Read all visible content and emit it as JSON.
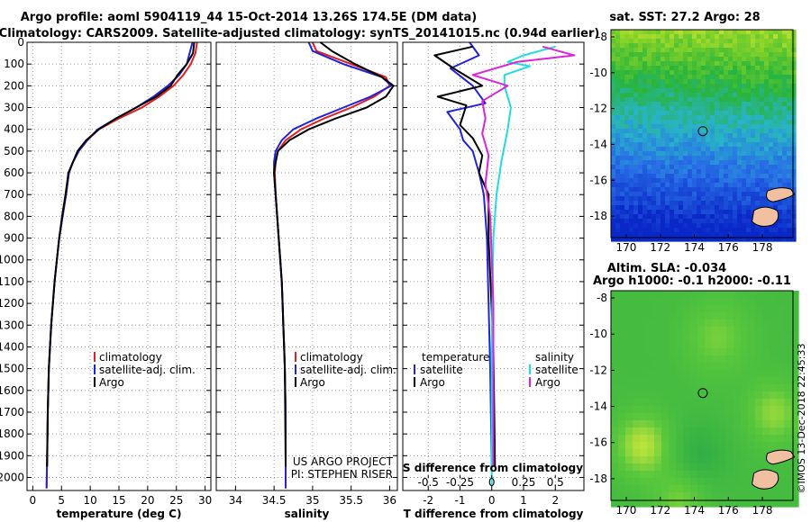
{
  "header": {
    "title1": "Argo profile: aoml 5904119_44 15-Oct-2014 13.26S 174.5E (DM data)",
    "title2": "Climatology: CARS2009. Satellite-adjusted climatology: synTS_20141015.nc (0.94d earlier)"
  },
  "colors": {
    "climatology": "#e41e1e",
    "satellite": "#2222dd",
    "argo": "#000000",
    "argo_salinity": "#dd22dd",
    "satellite_salinity": "#22dddd",
    "land": "#f0c0a0"
  },
  "chart_data": [
    {
      "id": "temperature",
      "type": "line",
      "xlabel": "temperature (deg C)",
      "ylabel": "",
      "xlim": [
        -1,
        31
      ],
      "ylim": [
        2060,
        0
      ],
      "xticks": [
        0,
        5,
        10,
        15,
        20,
        25,
        30
      ],
      "yticks": [
        0,
        100,
        200,
        300,
        400,
        500,
        600,
        700,
        800,
        900,
        1000,
        1100,
        1200,
        1300,
        1400,
        1500,
        1600,
        1700,
        1800,
        1900,
        2000
      ],
      "grid": true,
      "legend": {
        "placement": "lower-center",
        "entries": [
          "climatology",
          "satellite-adj. clim.",
          "Argo"
        ]
      },
      "series": [
        {
          "name": "climatology",
          "x": [
            28.6,
            28.3,
            27.5,
            26.2,
            24.5,
            22.0,
            19.0,
            15.0,
            11.5,
            9.5,
            8.0,
            7.0,
            6.3,
            5.8,
            5.2,
            4.6,
            4.2,
            3.8,
            3.5,
            3.2,
            3.0,
            2.8,
            2.6,
            2.5,
            2.4
          ],
          "y": [
            0,
            50,
            100,
            150,
            200,
            250,
            300,
            350,
            400,
            450,
            500,
            550,
            600,
            700,
            800,
            900,
            1000,
            1100,
            1200,
            1300,
            1400,
            1500,
            1700,
            1900,
            2050
          ]
        },
        {
          "name": "satellite-adj. clim.",
          "x": [
            27.8,
            27.3,
            26.8,
            25.5,
            23.5,
            21.0,
            18.0,
            14.5,
            11.3,
            9.5,
            8.0,
            7.0,
            6.3,
            5.8,
            5.2,
            4.6,
            4.2,
            3.8,
            3.5,
            3.2,
            3.0,
            2.8,
            2.6,
            2.5,
            2.4
          ],
          "y": [
            0,
            50,
            100,
            150,
            200,
            250,
            300,
            350,
            400,
            450,
            500,
            550,
            600,
            700,
            800,
            900,
            1000,
            1100,
            1200,
            1300,
            1400,
            1500,
            1700,
            1900,
            2050
          ]
        },
        {
          "name": "Argo",
          "x": [
            28.1,
            27.9,
            26.8,
            25.2,
            24.0,
            21.5,
            18.0,
            14.5,
            11.5,
            9.3,
            7.8,
            7.0,
            6.2,
            5.7,
            5.1,
            4.6,
            4.2,
            3.8,
            3.5,
            3.2,
            3.0,
            2.8,
            2.6,
            2.5
          ],
          "y": [
            0,
            50,
            100,
            150,
            200,
            250,
            300,
            350,
            400,
            450,
            500,
            550,
            600,
            700,
            800,
            900,
            1000,
            1100,
            1200,
            1300,
            1400,
            1500,
            1700,
            1950
          ]
        }
      ]
    },
    {
      "id": "salinity",
      "type": "line",
      "xlabel": "salinity",
      "ylabel": "",
      "xlim": [
        33.75,
        36.1
      ],
      "ylim": [
        2060,
        0
      ],
      "xticks": [
        34,
        34.5,
        35,
        35.5,
        36
      ],
      "xticklabels": [
        "34",
        "34.5",
        "35",
        "35.5",
        "36"
      ],
      "grid": true,
      "legend": {
        "placement": "lower-center",
        "entries": [
          "climatology",
          "satellite-adj. clim.",
          "Argo"
        ]
      },
      "annotations": [
        "US ARGO PROJECT",
        "PI: STEPHEN RISER"
      ],
      "series": [
        {
          "name": "climatology",
          "x": [
            35.0,
            35.05,
            35.5,
            35.95,
            36.0,
            35.8,
            35.5,
            35.15,
            34.85,
            34.65,
            34.55,
            34.52,
            34.51,
            34.52,
            34.54,
            34.56,
            34.58,
            34.6,
            34.61,
            34.62,
            34.63,
            34.64,
            34.65,
            34.65
          ],
          "y": [
            0,
            40,
            100,
            160,
            200,
            250,
            300,
            350,
            400,
            450,
            500,
            550,
            600,
            700,
            800,
            900,
            1000,
            1100,
            1200,
            1300,
            1400,
            1500,
            1700,
            2050
          ]
        },
        {
          "name": "satellite-adj. clim.",
          "x": [
            34.95,
            35.0,
            35.4,
            35.9,
            36.02,
            35.75,
            35.4,
            35.05,
            34.75,
            34.6,
            34.52,
            34.5,
            34.5,
            34.52,
            34.54,
            34.56,
            34.58,
            34.6,
            34.61,
            34.62,
            34.63,
            34.64,
            34.65,
            34.65
          ],
          "y": [
            0,
            40,
            100,
            160,
            200,
            250,
            300,
            350,
            400,
            450,
            500,
            550,
            600,
            700,
            800,
            900,
            1000,
            1100,
            1200,
            1300,
            1400,
            1500,
            1700,
            2050
          ]
        },
        {
          "name": "Argo",
          "x": [
            35.1,
            35.25,
            35.55,
            35.9,
            36.05,
            35.95,
            35.7,
            35.3,
            34.95,
            34.7,
            34.55,
            34.52,
            34.5,
            34.52,
            34.54,
            34.56,
            34.58,
            34.6,
            34.61,
            34.62,
            34.63,
            34.64,
            34.65
          ],
          "y": [
            0,
            40,
            100,
            160,
            200,
            250,
            300,
            350,
            400,
            450,
            500,
            550,
            600,
            700,
            800,
            900,
            1000,
            1100,
            1200,
            1300,
            1400,
            1500,
            1950
          ]
        }
      ]
    },
    {
      "id": "difference",
      "type": "line",
      "xlabel": "T difference from climatology",
      "secondary_xlabel": "S difference from climatology",
      "ylabel": "",
      "xlim": [
        -2.8,
        2.9
      ],
      "ylim": [
        2060,
        0
      ],
      "xticks": [
        -2,
        -1,
        0,
        1,
        2
      ],
      "secondary_xticks": [
        -2,
        -1,
        0,
        1,
        2
      ],
      "secondary_xticklabels": [
        "-0.5",
        "-0.25",
        "0",
        "0.25",
        "0.5"
      ],
      "grid": true,
      "legend": {
        "placement": "lower-center",
        "groups": [
          "temperature",
          "salinity"
        ],
        "entries": [
          "satellite",
          "Argo",
          "satellite",
          "Argo"
        ]
      },
      "series": [
        {
          "name": "temperature satellite",
          "x": [
            -0.7,
            -0.4,
            -1.3,
            -0.6,
            -0.2,
            -1.4,
            -1.0,
            -0.9,
            -0.6,
            -0.4,
            -0.25,
            -0.15,
            -0.1,
            -0.05,
            0.0
          ],
          "y": [
            0,
            60,
            120,
            200,
            280,
            320,
            400,
            450,
            500,
            600,
            700,
            900,
            1200,
            1500,
            1950
          ]
        },
        {
          "name": "temperature Argo",
          "x": [
            -0.6,
            -1.8,
            -1.2,
            -0.3,
            -1.7,
            -0.8,
            -1.0,
            -0.6,
            -0.3,
            -0.4,
            -0.1,
            -0.1,
            0.05,
            0.1
          ],
          "y": [
            20,
            60,
            120,
            200,
            250,
            290,
            380,
            440,
            520,
            600,
            700,
            900,
            1400,
            1950
          ]
        },
        {
          "name": "salinity satellite",
          "x": [
            2.0,
            1.0,
            0.5,
            1.2,
            0.4,
            0.4,
            0.6,
            0.5,
            0.3,
            0.15,
            0.05,
            0.0,
            0.0
          ],
          "y": [
            20,
            60,
            90,
            110,
            150,
            200,
            300,
            400,
            550,
            700,
            900,
            1400,
            2040
          ]
        },
        {
          "name": "salinity Argo",
          "x": [
            1.6,
            2.6,
            0.8,
            -0.6,
            0.5,
            -0.3,
            -0.2,
            -0.3,
            -0.1,
            -0.2,
            -0.05,
            0.05,
            0.05
          ],
          "y": [
            20,
            60,
            90,
            150,
            200,
            270,
            350,
            420,
            520,
            650,
            800,
            1200,
            1950
          ]
        }
      ]
    },
    {
      "id": "sst-map",
      "type": "heatmap",
      "title": "sat. SST: 27.2 Argo: 28",
      "xticks": [
        170,
        172,
        174,
        176,
        178
      ],
      "yticks": [
        -8,
        -10,
        -12,
        -14,
        -16,
        -18
      ],
      "xlim": [
        169.1,
        179.8
      ],
      "ylim": [
        -19.2,
        -7.6
      ],
      "marker": {
        "lon": 174.5,
        "lat": -13.26
      },
      "palette": "blue-green-yellow"
    },
    {
      "id": "sla-map",
      "type": "heatmap",
      "title": "Altim. SLA: -0.034",
      "subtitle": "Argo h1000: -0.1 h2000: -0.11",
      "xticks": [
        170,
        172,
        174,
        176,
        178
      ],
      "yticks": [
        -8,
        -10,
        -12,
        -14,
        -16,
        -18
      ],
      "xlim": [
        169.1,
        179.8
      ],
      "ylim": [
        -19.2,
        -7.6
      ],
      "marker": {
        "lon": 174.5,
        "lat": -13.26
      },
      "palette": "green-yellow"
    }
  ],
  "footer": {
    "watermark": "©IMOS 13-Dec-2018 22:45:33"
  }
}
